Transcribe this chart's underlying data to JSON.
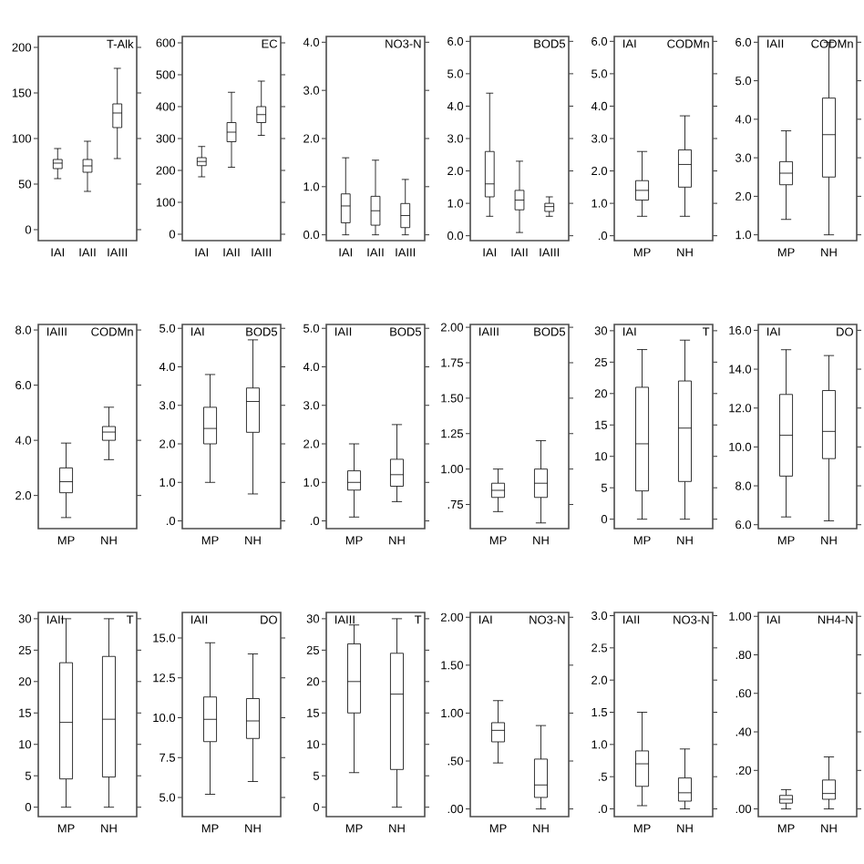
{
  "chart_data": [
    {
      "type": "box",
      "title": "T-Alk",
      "categories": [
        "IAI",
        "IAII",
        "IAIII"
      ],
      "ylim": [
        -12,
        212
      ],
      "yticks": [
        0,
        50,
        100,
        150,
        200
      ],
      "boxes": [
        {
          "low": 56,
          "q1": 67,
          "median": 73,
          "q3": 77,
          "high": 89
        },
        {
          "low": 42,
          "q1": 63,
          "median": 70,
          "q3": 77,
          "high": 97
        },
        {
          "low": 78,
          "q1": 112,
          "median": 128,
          "q3": 138,
          "high": 177
        }
      ]
    },
    {
      "type": "box",
      "title": "EC",
      "categories": [
        "IAI",
        "IAII",
        "IAIII"
      ],
      "ylim": [
        -20,
        620
      ],
      "yticks": [
        0,
        100,
        200,
        300,
        400,
        500,
        600
      ],
      "boxes": [
        {
          "low": 180,
          "q1": 215,
          "median": 228,
          "q3": 240,
          "high": 275
        },
        {
          "low": 210,
          "q1": 290,
          "median": 320,
          "q3": 350,
          "high": 445
        },
        {
          "low": 310,
          "q1": 350,
          "median": 375,
          "q3": 400,
          "high": 480
        }
      ]
    },
    {
      "type": "box",
      "title": "NO3-N",
      "categories": [
        "IAI",
        "IAII",
        "IAIII"
      ],
      "ylim": [
        -0.12,
        4.12
      ],
      "yticks": [
        {
          "value": 0,
          "label": "0.0"
        },
        {
          "value": 1,
          "label": "1.0"
        },
        {
          "value": 2,
          "label": "2.0"
        },
        {
          "value": 3,
          "label": "3.0"
        },
        {
          "value": 4,
          "label": "4.0"
        }
      ],
      "boxes": [
        {
          "low": 0.0,
          "q1": 0.25,
          "median": 0.6,
          "q3": 0.85,
          "high": 1.6
        },
        {
          "low": 0.0,
          "q1": 0.2,
          "median": 0.5,
          "q3": 0.8,
          "high": 1.55
        },
        {
          "low": 0.0,
          "q1": 0.15,
          "median": 0.4,
          "q3": 0.65,
          "high": 1.15
        }
      ]
    },
    {
      "type": "box",
      "title": "BOD5",
      "categories": [
        "IAI",
        "IAII",
        "IAIII"
      ],
      "ylim": [
        -0.15,
        6.15
      ],
      "yticks": [
        {
          "value": 0,
          "label": "0.0"
        },
        {
          "value": 1,
          "label": "1.0"
        },
        {
          "value": 2,
          "label": "2.0"
        },
        {
          "value": 3,
          "label": "3.0"
        },
        {
          "value": 4,
          "label": "4.0"
        },
        {
          "value": 5,
          "label": "5.0"
        },
        {
          "value": 6,
          "label": "6.0"
        }
      ],
      "boxes": [
        {
          "low": 0.6,
          "q1": 1.2,
          "median": 1.6,
          "q3": 2.6,
          "high": 4.4
        },
        {
          "low": 0.1,
          "q1": 0.8,
          "median": 1.1,
          "q3": 1.4,
          "high": 2.3
        },
        {
          "low": 0.6,
          "q1": 0.75,
          "median": 0.9,
          "q3": 1.0,
          "high": 1.2
        }
      ]
    },
    {
      "type": "box",
      "title": "CODMn",
      "subtitle": "IAI",
      "categories": [
        "MP",
        "NH"
      ],
      "ylim": [
        -0.15,
        6.15
      ],
      "yticks": [
        {
          "value": 0,
          "label": ".0"
        },
        {
          "value": 1,
          "label": "1.0"
        },
        {
          "value": 2,
          "label": "2.0"
        },
        {
          "value": 3,
          "label": "3.0"
        },
        {
          "value": 4,
          "label": "4.0"
        },
        {
          "value": 5,
          "label": "5.0"
        },
        {
          "value": 6,
          "label": "6.0"
        }
      ],
      "boxes": [
        {
          "low": 0.6,
          "q1": 1.1,
          "median": 1.4,
          "q3": 1.7,
          "high": 2.6
        },
        {
          "low": 0.6,
          "q1": 1.5,
          "median": 2.2,
          "q3": 2.65,
          "high": 3.7
        }
      ]
    },
    {
      "type": "box",
      "title": "CODMn",
      "subtitle": "IAII",
      "categories": [
        "MP",
        "NH"
      ],
      "ylim": [
        0.85,
        6.15
      ],
      "yticks": [
        {
          "value": 1,
          "label": "1.0"
        },
        {
          "value": 2,
          "label": "2.0"
        },
        {
          "value": 3,
          "label": "3.0"
        },
        {
          "value": 4,
          "label": "4.0"
        },
        {
          "value": 5,
          "label": "5.0"
        },
        {
          "value": 6,
          "label": "6.0"
        }
      ],
      "boxes": [
        {
          "low": 1.4,
          "q1": 2.3,
          "median": 2.6,
          "q3": 2.9,
          "high": 3.7
        },
        {
          "low": 1.0,
          "q1": 2.5,
          "median": 3.6,
          "q3": 4.55,
          "high": 6.0
        }
      ]
    },
    {
      "type": "box",
      "title": "CODMn",
      "subtitle": "IAIII",
      "categories": [
        "MP",
        "NH"
      ],
      "ylim": [
        0.8,
        8.2
      ],
      "yticks": [
        {
          "value": 2,
          "label": "2.0"
        },
        {
          "value": 4,
          "label": "4.0"
        },
        {
          "value": 6,
          "label": "6.0"
        },
        {
          "value": 8,
          "label": "8.0"
        }
      ],
      "boxes": [
        {
          "low": 1.2,
          "q1": 2.1,
          "median": 2.5,
          "q3": 3.0,
          "high": 3.9
        },
        {
          "low": 3.3,
          "q1": 4.0,
          "median": 4.3,
          "q3": 4.5,
          "high": 5.2
        }
      ]
    },
    {
      "type": "box",
      "title": "BOD5",
      "subtitle": "IAI",
      "categories": [
        "MP",
        "NH"
      ],
      "ylim": [
        -0.2,
        5.1
      ],
      "yticks": [
        {
          "value": 0,
          "label": ".0"
        },
        {
          "value": 1,
          "label": "1.0"
        },
        {
          "value": 2,
          "label": "2.0"
        },
        {
          "value": 3,
          "label": "3.0"
        },
        {
          "value": 4,
          "label": "4.0"
        },
        {
          "value": 5,
          "label": "5.0"
        }
      ],
      "boxes": [
        {
          "low": 1.0,
          "q1": 2.0,
          "median": 2.4,
          "q3": 2.95,
          "high": 3.8
        },
        {
          "low": 0.7,
          "q1": 2.3,
          "median": 3.1,
          "q3": 3.45,
          "high": 4.7
        }
      ]
    },
    {
      "type": "box",
      "title": "BOD5",
      "subtitle": "IAII",
      "categories": [
        "MP",
        "NH"
      ],
      "ylim": [
        -0.2,
        5.1
      ],
      "yticks": [
        {
          "value": 0,
          "label": ".0"
        },
        {
          "value": 1,
          "label": "1.0"
        },
        {
          "value": 2,
          "label": "2.0"
        },
        {
          "value": 3,
          "label": "3.0"
        },
        {
          "value": 4,
          "label": "4.0"
        },
        {
          "value": 5,
          "label": "5.0"
        }
      ],
      "boxes": [
        {
          "low": 0.1,
          "q1": 0.8,
          "median": 1.0,
          "q3": 1.3,
          "high": 2.0
        },
        {
          "low": 0.5,
          "q1": 0.9,
          "median": 1.2,
          "q3": 1.6,
          "high": 2.5
        }
      ]
    },
    {
      "type": "box",
      "title": "BOD5",
      "subtitle": "IAIII",
      "categories": [
        "MP",
        "NH"
      ],
      "ylim": [
        0.58,
        2.02
      ],
      "yticks": [
        {
          "value": 0.75,
          "label": ".75"
        },
        {
          "value": 1,
          "label": "1.00"
        },
        {
          "value": 1.25,
          "label": "1.25"
        },
        {
          "value": 1.5,
          "label": "1.50"
        },
        {
          "value": 1.75,
          "label": "1.75"
        },
        {
          "value": 2,
          "label": "2.00"
        }
      ],
      "boxes": [
        {
          "low": 0.7,
          "q1": 0.8,
          "median": 0.85,
          "q3": 0.9,
          "high": 1.0
        },
        {
          "low": 0.62,
          "q1": 0.8,
          "median": 0.9,
          "q3": 1.0,
          "high": 1.2
        }
      ]
    },
    {
      "type": "box",
      "title": "T",
      "subtitle": "IAI",
      "categories": [
        "MP",
        "NH"
      ],
      "ylim": [
        -1.5,
        31
      ],
      "yticks": [
        0,
        5,
        10,
        15,
        20,
        25,
        30
      ],
      "boxes": [
        {
          "low": 0,
          "q1": 4.5,
          "median": 12,
          "q3": 21,
          "high": 27
        },
        {
          "low": 0,
          "q1": 6,
          "median": 14.5,
          "q3": 22,
          "high": 28.5
        }
      ]
    },
    {
      "type": "box",
      "title": "DO",
      "subtitle": "IAI",
      "categories": [
        "MP",
        "NH"
      ],
      "ylim": [
        5.8,
        16.3
      ],
      "yticks": [
        {
          "value": 6,
          "label": "6.0"
        },
        {
          "value": 8,
          "label": "8.0"
        },
        {
          "value": 10,
          "label": "10.0"
        },
        {
          "value": 12,
          "label": "12.0"
        },
        {
          "value": 14,
          "label": "14.0"
        },
        {
          "value": 16,
          "label": "16.0"
        }
      ],
      "boxes": [
        {
          "low": 6.4,
          "q1": 8.5,
          "median": 10.6,
          "q3": 12.7,
          "high": 15.0
        },
        {
          "low": 6.2,
          "q1": 9.4,
          "median": 10.8,
          "q3": 12.9,
          "high": 14.7
        }
      ]
    },
    {
      "type": "box",
      "title": "T",
      "subtitle": "IAII",
      "categories": [
        "MP",
        "NH"
      ],
      "ylim": [
        -1.5,
        31
      ],
      "yticks": [
        0,
        5,
        10,
        15,
        20,
        25,
        30
      ],
      "boxes": [
        {
          "low": 0,
          "q1": 4.5,
          "median": 13.5,
          "q3": 23,
          "high": 30
        },
        {
          "low": 0,
          "q1": 4.8,
          "median": 14,
          "q3": 24,
          "high": 30
        }
      ]
    },
    {
      "type": "box",
      "title": "DO",
      "subtitle": "IAII",
      "categories": [
        "MP",
        "NH"
      ],
      "ylim": [
        3.8,
        16.6
      ],
      "yticks": [
        {
          "value": 5,
          "label": "5.0"
        },
        {
          "value": 7.5,
          "label": "7.5"
        },
        {
          "value": 10,
          "label": "10.0"
        },
        {
          "value": 12.5,
          "label": "12.5"
        },
        {
          "value": 15,
          "label": "15.0"
        }
      ],
      "boxes": [
        {
          "low": 5.2,
          "q1": 8.5,
          "median": 9.9,
          "q3": 11.3,
          "high": 14.7
        },
        {
          "low": 6.0,
          "q1": 8.7,
          "median": 9.8,
          "q3": 11.2,
          "high": 14.0
        }
      ]
    },
    {
      "type": "box",
      "title": "T",
      "subtitle": "IAIII",
      "categories": [
        "MP",
        "NH"
      ],
      "ylim": [
        -1.5,
        31
      ],
      "yticks": [
        0,
        5,
        10,
        15,
        20,
        25,
        30
      ],
      "boxes": [
        {
          "low": 5.5,
          "q1": 15,
          "median": 20,
          "q3": 26,
          "high": 29
        },
        {
          "low": 0,
          "q1": 6,
          "median": 18,
          "q3": 24.5,
          "high": 30
        }
      ]
    },
    {
      "type": "box",
      "title": "NO3-N",
      "subtitle": "IAI",
      "categories": [
        "MP",
        "NH"
      ],
      "ylim": [
        -0.08,
        2.05
      ],
      "yticks": [
        {
          "value": 0,
          "label": ".00"
        },
        {
          "value": 0.5,
          "label": ".50"
        },
        {
          "value": 1,
          "label": "1.00"
        },
        {
          "value": 1.5,
          "label": "1.50"
        },
        {
          "value": 2,
          "label": "2.00"
        }
      ],
      "boxes": [
        {
          "low": 0.48,
          "q1": 0.7,
          "median": 0.82,
          "q3": 0.9,
          "high": 1.13
        },
        {
          "low": 0.0,
          "q1": 0.12,
          "median": 0.25,
          "q3": 0.52,
          "high": 0.87
        }
      ]
    },
    {
      "type": "box",
      "title": "NO3-N",
      "subtitle": "IAII",
      "categories": [
        "MP",
        "NH"
      ],
      "ylim": [
        -0.12,
        3.05
      ],
      "yticks": [
        {
          "value": 0,
          "label": ".0"
        },
        {
          "value": 0.5,
          "label": ".5"
        },
        {
          "value": 1,
          "label": "1.0"
        },
        {
          "value": 1.5,
          "label": "1.5"
        },
        {
          "value": 2,
          "label": "2.0"
        },
        {
          "value": 2.5,
          "label": "2.5"
        },
        {
          "value": 3,
          "label": "3.0"
        }
      ],
      "boxes": [
        {
          "low": 0.05,
          "q1": 0.35,
          "median": 0.7,
          "q3": 0.9,
          "high": 1.5
        },
        {
          "low": 0.0,
          "q1": 0.12,
          "median": 0.25,
          "q3": 0.48,
          "high": 0.93
        }
      ]
    },
    {
      "type": "box",
      "title": "NH4-N",
      "subtitle": "IAI",
      "categories": [
        "MP",
        "NH"
      ],
      "ylim": [
        -0.04,
        1.02
      ],
      "yticks": [
        {
          "value": 0,
          "label": ".00"
        },
        {
          "value": 0.2,
          "label": ".20"
        },
        {
          "value": 0.4,
          "label": ".40"
        },
        {
          "value": 0.6,
          "label": ".60"
        },
        {
          "value": 0.8,
          "label": ".80"
        },
        {
          "value": 1,
          "label": "1.00"
        }
      ],
      "boxes": [
        {
          "low": 0.0,
          "q1": 0.03,
          "median": 0.05,
          "q3": 0.07,
          "high": 0.1
        },
        {
          "low": 0.0,
          "q1": 0.05,
          "median": 0.08,
          "q3": 0.15,
          "high": 0.27
        }
      ]
    }
  ]
}
